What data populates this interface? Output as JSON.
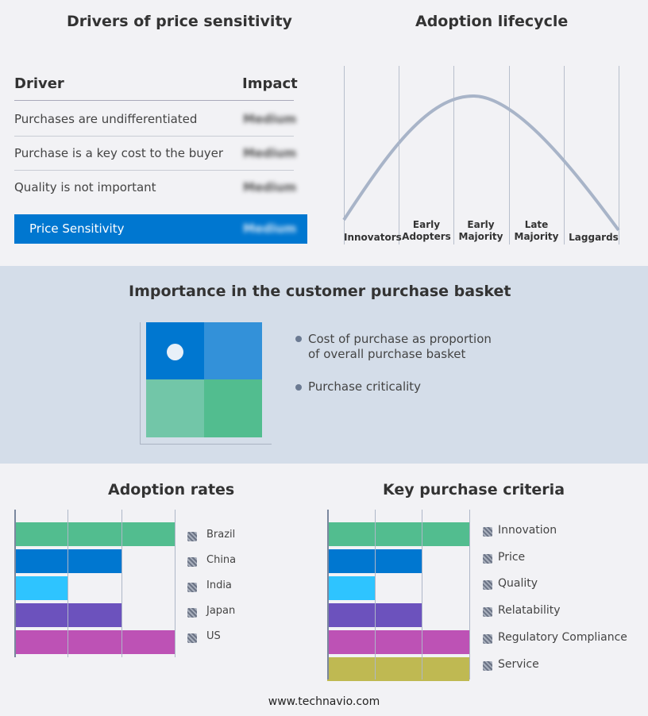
{
  "drivers": {
    "title": "Drivers of price sensitivity",
    "col_driver": "Driver",
    "col_impact": "Impact",
    "rows": [
      {
        "driver": "Purchases are undifferentiated",
        "impact": "Medium"
      },
      {
        "driver": "Purchase is a key cost to the buyer",
        "impact": "Medium"
      },
      {
        "driver": "Quality is not important",
        "impact": "Medium"
      }
    ],
    "summary": {
      "label": "Price Sensitivity",
      "impact": "Medium"
    }
  },
  "lifecycle": {
    "title": "Adoption lifecycle",
    "stages": [
      "Innovators",
      "Early Adopters",
      "Early Majority",
      "Late Majority",
      "Laggards"
    ]
  },
  "basket": {
    "title": "Importance in the customer purchase basket",
    "legend": [
      "Cost of purchase as proportion of overall purchase basket",
      "Purchase criticality"
    ],
    "colors": [
      "#0077d0",
      "#3391d9",
      "#72c6a8",
      "#52bd8f"
    ]
  },
  "chart_data": [
    {
      "type": "bar",
      "title": "Adoption rates",
      "categories": [
        "Brazil",
        "China",
        "India",
        "Japan",
        "US"
      ],
      "values": [
        3,
        2,
        1,
        2,
        3
      ],
      "xlim": [
        0,
        3
      ],
      "colors": [
        "#52bd8f",
        "#0077d0",
        "#2ec4ff",
        "#6c52bd",
        "#bd52b5"
      ],
      "grid": true,
      "legend": "right"
    },
    {
      "type": "bar",
      "title": "Key purchase criteria",
      "categories": [
        "Innovation",
        "Price",
        "Quality",
        "Relatability",
        "Regulatory Compliance",
        "Service"
      ],
      "values": [
        3,
        2,
        1,
        2,
        3,
        3
      ],
      "xlim": [
        0,
        3
      ],
      "colors": [
        "#52bd8f",
        "#0077d0",
        "#2ec4ff",
        "#6c52bd",
        "#bd52b5",
        "#bfb952"
      ],
      "grid": true,
      "legend": "right"
    }
  ],
  "footer": "www.technavio.com"
}
